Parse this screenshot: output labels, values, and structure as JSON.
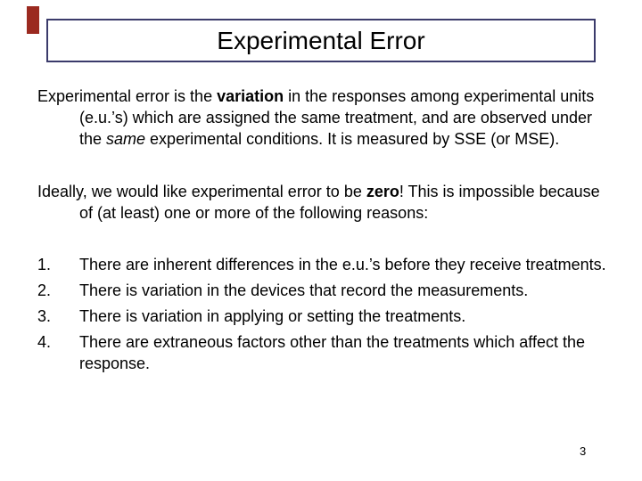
{
  "slide": {
    "title": "Experimental Error",
    "page_number": "3",
    "colors": {
      "background": "#FFFFFF",
      "title_border": "#3B3B6B",
      "corner_marker": "#9B2A20",
      "text": "#000000"
    }
  },
  "body": {
    "para1": {
      "pre": "Experimental error is the ",
      "bold": "variation",
      "mid": " in the responses among experimental units (e.u.’s) which are assigned the same treatment, and are observed under the ",
      "italic": "same",
      "post": " experimental conditions. It is measured by SSE (or MSE)."
    },
    "para2": {
      "pre": "Ideally, we would like experimental error to be ",
      "bold": "zero",
      "post": "! This is impossible because of (at least) one or more of the following reasons:"
    },
    "reasons": [
      {
        "number": "1.",
        "text": "There are inherent differences in the e.u.’s before they receive treatments."
      },
      {
        "number": "2.",
        "text": "There is variation in the devices that record the measurements."
      },
      {
        "number": "3.",
        "text": "There is variation in applying or setting the treatments."
      },
      {
        "number": "4.",
        "text": "There are extraneous factors other than the treatments which affect the response."
      }
    ]
  }
}
